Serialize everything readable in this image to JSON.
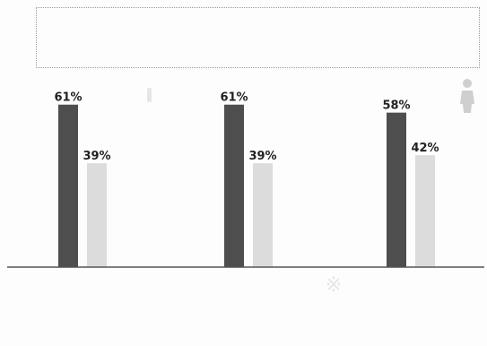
{
  "chart_data": {
    "type": "bar",
    "title": "",
    "categories": [
      "",
      "",
      ""
    ],
    "series": [
      {
        "values": [
          61,
          61,
          58
        ]
      },
      {
        "values": [
          39,
          39,
          42
        ]
      }
    ],
    "value_suffix": "%",
    "ylim": [
      0,
      70
    ],
    "grid": false,
    "legend": "none"
  },
  "colors": {
    "series_dark": "#4e4e4e",
    "series_light": "#dcdcdc",
    "baseline": "#555555",
    "label_text": "#222222",
    "category_text": "#555555",
    "decoration": "#d6d6d6"
  },
  "icons": {
    "person": "person-icon"
  },
  "source": {
    "text": ""
  }
}
